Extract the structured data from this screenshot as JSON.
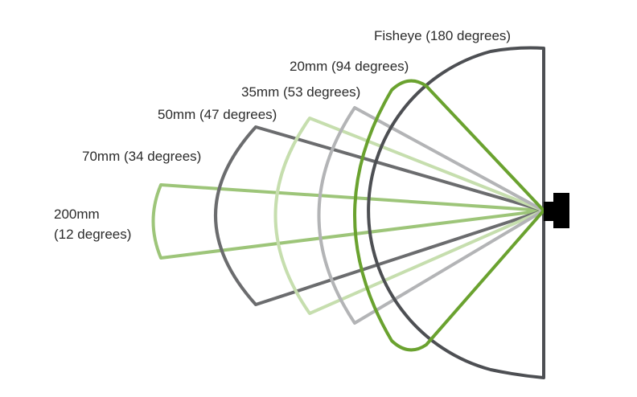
{
  "labels": {
    "fisheye": "Fisheye (180 degrees)",
    "mm20": "20mm (94 degrees)",
    "mm35": "35mm (53 degrees)",
    "mm50": "50mm (47 degrees)",
    "mm70": "70mm (34 degrees)",
    "mm200_line1": "200mm",
    "mm200_line2": "(12 degrees)"
  },
  "colors": {
    "fisheye": "#4d4f53",
    "mm20": "#6aa22f",
    "mm35": "#b3b4b6",
    "mm50": "#c6deae",
    "mm70": "#6b6c6e",
    "mm200": "#9dc579",
    "camera": "#000000",
    "text": "#2b2b2b"
  },
  "icons": {
    "camera": "camera-icon"
  }
}
